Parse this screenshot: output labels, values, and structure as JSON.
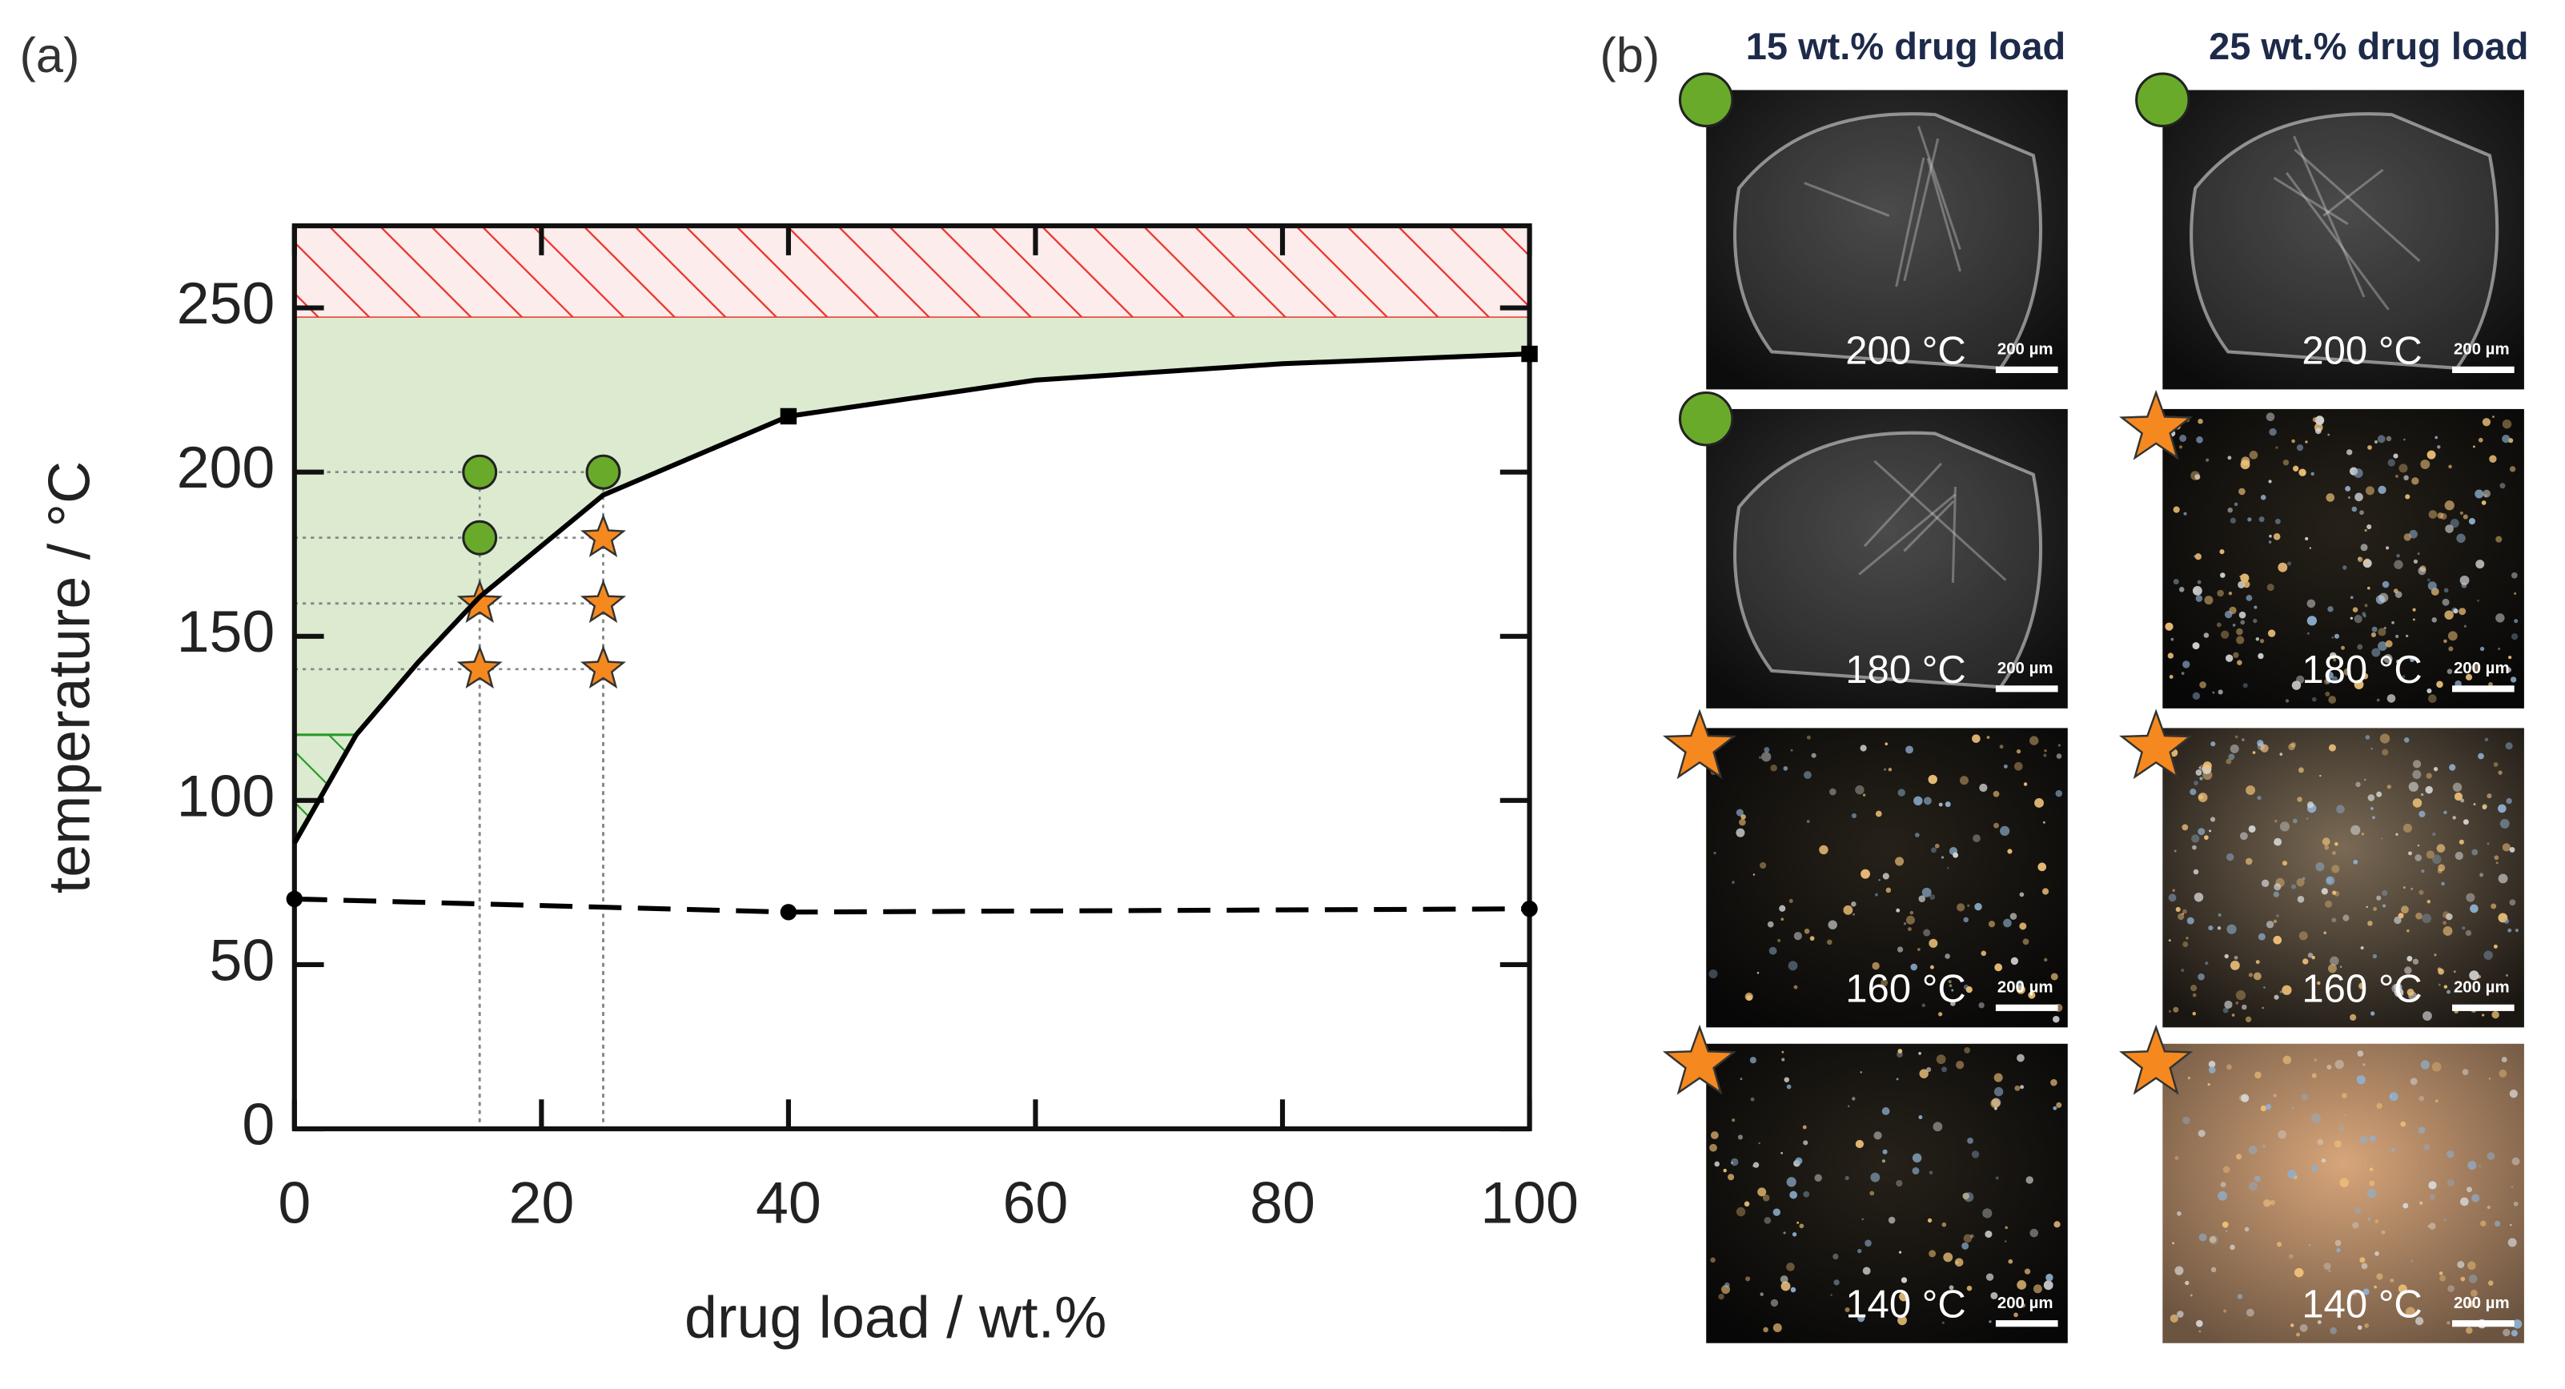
{
  "panel_a": {
    "label": "(a)"
  },
  "chart_data": {
    "type": "scatter",
    "xlabel": "drug load / wt.%",
    "ylabel": "temperature / °C",
    "xlim": [
      0,
      100
    ],
    "ylim": [
      0,
      275
    ],
    "xticks": [
      0,
      20,
      40,
      60,
      80,
      100
    ],
    "yticks": [
      0,
      50,
      100,
      150,
      200,
      250
    ],
    "regions": [
      {
        "fill": "#fdecec",
        "color": "#e8342b",
        "hatch": true,
        "x": [
          0,
          100,
          100,
          0
        ],
        "values": [
          247,
          247,
          275,
          275
        ]
      },
      {
        "fill": "#dcebd0",
        "upper": 247,
        "lower_series": 2
      },
      {
        "fill": "none",
        "color": "#2a9a2a",
        "hatch": true,
        "x": [
          0,
          5,
          0
        ],
        "values": [
          120,
          120,
          88
        ]
      }
    ],
    "series": [
      {
        "marker": "circle",
        "color": "#6aaa2a",
        "guides": true,
        "x": [
          15,
          15,
          25
        ],
        "values": [
          200,
          180,
          200
        ]
      },
      {
        "marker": "star",
        "color": "#f5891f",
        "guides": true,
        "x": [
          15,
          15,
          25,
          25,
          25
        ],
        "values": [
          160,
          140,
          180,
          160,
          140
        ]
      },
      {
        "line": "solid",
        "color": "#000000",
        "x": [
          0,
          5,
          10,
          15,
          25,
          40,
          60,
          80,
          100
        ],
        "values": [
          87,
          120,
          142,
          162,
          193,
          217,
          228,
          233,
          236
        ]
      },
      {
        "marker": "square",
        "color": "#000000",
        "x": [
          40,
          100
        ],
        "values": [
          217,
          236
        ]
      },
      {
        "line": "dashed",
        "marker": "dot",
        "color": "#000000",
        "x": [
          0,
          40,
          100
        ],
        "values": [
          70,
          66,
          67
        ]
      }
    ]
  },
  "panel_b": {
    "label": "(b)",
    "marker_colors": {
      "circle": "#6aaa2a",
      "star": "#f5891f"
    },
    "columns": [
      {
        "title": "15 wt.%  drug load",
        "images": [
          {
            "temperature": "200 °C",
            "scale": "200 µm",
            "marker": "circle"
          },
          {
            "temperature": "180 °C",
            "scale": "200 µm",
            "marker": "circle"
          },
          {
            "temperature": "160 °C",
            "scale": "200 µm",
            "marker": "star"
          },
          {
            "temperature": "140 °C",
            "scale": "200 µm",
            "marker": "star"
          }
        ]
      },
      {
        "title": "25 wt.%  drug load",
        "images": [
          {
            "temperature": "200 °C",
            "scale": "200 µm",
            "marker": "circle"
          },
          {
            "temperature": "180 °C",
            "scale": "200 µm",
            "marker": "star"
          },
          {
            "temperature": "160 °C",
            "scale": "200 µm",
            "marker": "star"
          },
          {
            "temperature": "140 °C",
            "scale": "200 µm",
            "marker": "star"
          }
        ]
      }
    ]
  }
}
